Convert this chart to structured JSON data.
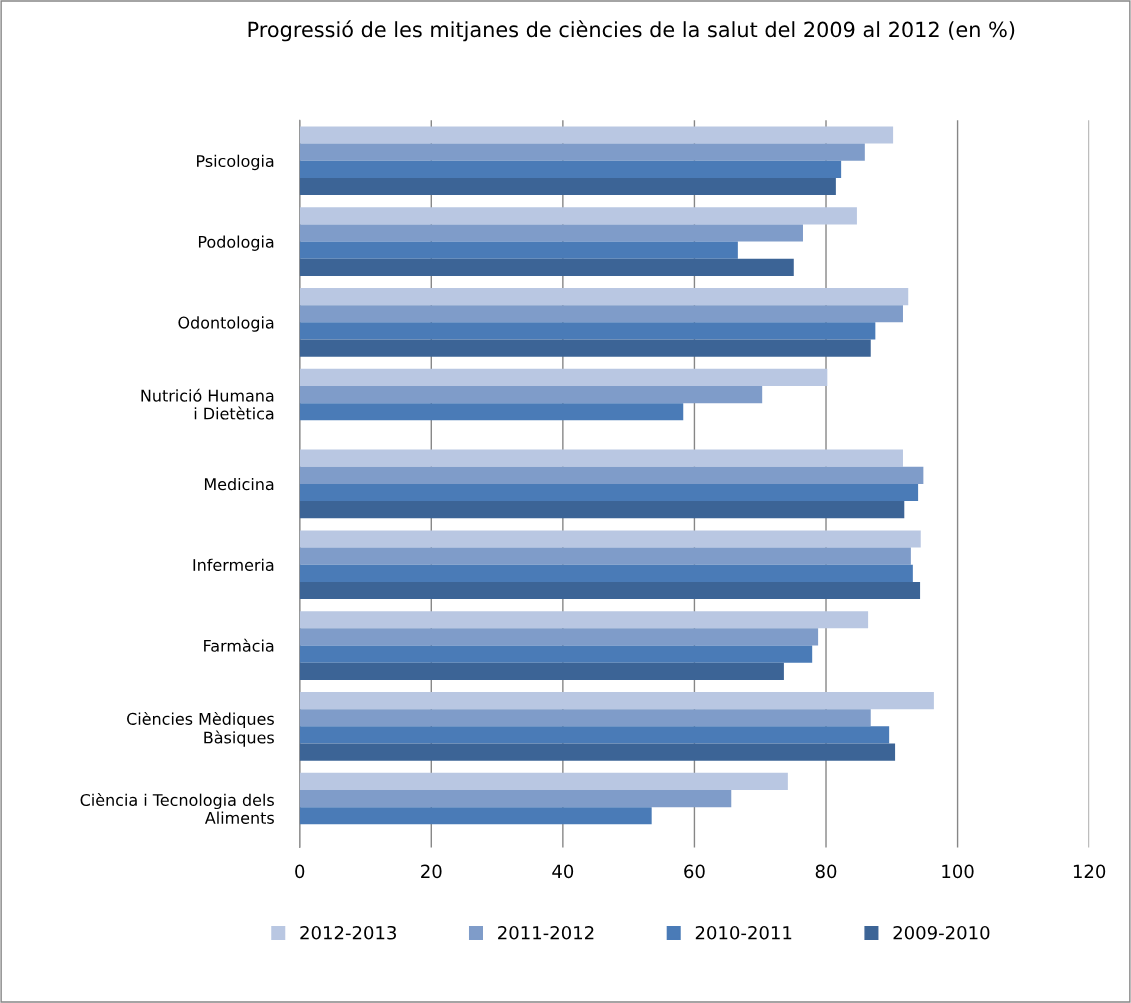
{
  "chart_data": {
    "type": "bar",
    "orientation": "horizontal",
    "title": "Progressió de les mitjanes de ciències de la salut del 2009 al 2012 (en %)",
    "categories": [
      "Psicologia",
      "Podologia",
      "Odontologia",
      "Nutrició Humana\ni Dietètica",
      "Medicina",
      "Infermeria",
      "Farmàcia",
      "Ciències Mèdiques\nBàsiques",
      "Ciència i Tecnologia dels\nAliments"
    ],
    "series": [
      {
        "name": "2012-2013",
        "color": "#b9c7e2",
        "values": [
          90.2,
          84.7,
          92.5,
          80.2,
          91.7,
          94.4,
          86.4,
          96.4,
          74.2
        ]
      },
      {
        "name": "2011-2012",
        "color": "#7f9cc9",
        "values": [
          85.9,
          76.5,
          91.7,
          70.3,
          94.8,
          92.9,
          78.8,
          86.8,
          65.6
        ]
      },
      {
        "name": "2010-2011",
        "color": "#4a7bb7",
        "values": [
          82.3,
          66.6,
          87.5,
          58.3,
          94.0,
          93.2,
          77.9,
          89.6,
          53.5
        ]
      },
      {
        "name": "2009-2010",
        "color": "#3c6496",
        "values": [
          81.5,
          75.1,
          86.8,
          null,
          91.9,
          94.3,
          73.6,
          90.5,
          null
        ]
      }
    ],
    "xlim": [
      0,
      120
    ],
    "xticks": [
      0,
      20,
      40,
      60,
      80,
      100,
      120
    ],
    "grid": "x",
    "legend": "bottom"
  }
}
